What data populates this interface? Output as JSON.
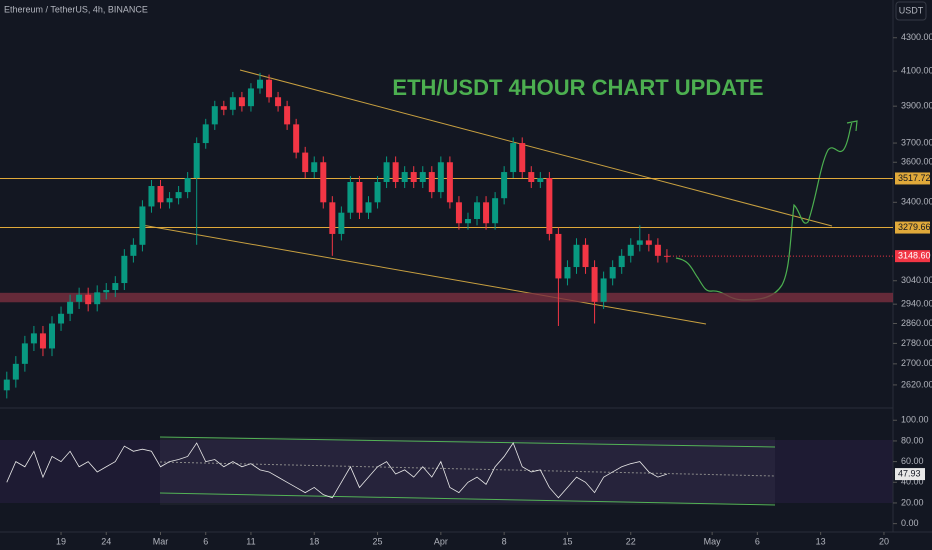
{
  "header": {
    "symbol": "Ethereum / TetherUS, 4h, BINANCE",
    "currency": "USDT"
  },
  "chart_data": [
    {
      "type": "candlestick",
      "title": "ETH/USDT 4HOUR CHART UPDATE",
      "x": [
        -6,
        -5,
        -4,
        -3,
        -2,
        -1,
        0,
        1,
        2,
        3,
        4,
        5,
        6,
        7,
        8,
        9,
        10,
        11,
        12,
        13,
        14,
        15,
        16,
        17,
        18,
        19,
        20,
        21,
        22,
        23,
        24,
        25,
        26,
        27,
        28,
        29,
        30,
        31,
        32,
        33,
        34,
        35,
        36,
        37,
        38,
        39,
        40,
        41,
        42,
        43,
        44,
        45,
        46,
        47,
        48,
        49,
        50,
        51,
        52,
        53,
        54,
        55,
        56,
        57,
        58,
        59,
        60,
        61,
        62,
        63,
        64,
        65,
        66,
        67
      ],
      "open": [
        2600,
        2640,
        2700,
        2780,
        2820,
        2760,
        2860,
        2900,
        2950,
        2980,
        2940,
        2990,
        3000,
        3030,
        3150,
        3200,
        3380,
        3480,
        3400,
        3420,
        3450,
        3520,
        3700,
        3800,
        3900,
        3880,
        3950,
        3900,
        4000,
        4050,
        3950,
        3900,
        3800,
        3650,
        3550,
        3600,
        3400,
        3250,
        3350,
        3500,
        3350,
        3400,
        3500,
        3600,
        3500,
        3550,
        3500,
        3550,
        3450,
        3600,
        3400,
        3300,
        3320,
        3400,
        3300,
        3420,
        3550,
        3700,
        3550,
        3500,
        3520,
        3250,
        3050,
        3100,
        3200,
        3100,
        2950,
        3050,
        3100,
        3150,
        3200,
        3220,
        3200,
        3150
      ],
      "high": [
        2670,
        2730,
        2810,
        2850,
        2850,
        2890,
        2930,
        2980,
        3010,
        3010,
        3020,
        3030,
        3060,
        3180,
        3230,
        3410,
        3510,
        3510,
        3450,
        3480,
        3550,
        3730,
        3830,
        3930,
        3930,
        3980,
        3980,
        4030,
        4090,
        4080,
        3980,
        3930,
        3830,
        3680,
        3630,
        3630,
        3430,
        3380,
        3530,
        3530,
        3430,
        3530,
        3630,
        3630,
        3580,
        3580,
        3580,
        3580,
        3630,
        3630,
        3430,
        3350,
        3430,
        3430,
        3450,
        3580,
        3730,
        3730,
        3580,
        3550,
        3550,
        3280,
        3130,
        3230,
        3230,
        3130,
        3080,
        3130,
        3180,
        3230,
        3290,
        3250,
        3230,
        3180
      ],
      "low": [
        2570,
        2610,
        2670,
        2750,
        2730,
        2730,
        2830,
        2870,
        2920,
        2910,
        2910,
        2960,
        2970,
        3000,
        3120,
        3170,
        3350,
        3370,
        3370,
        3390,
        3420,
        3200,
        3670,
        3770,
        3850,
        3850,
        3870,
        3870,
        3970,
        3920,
        3870,
        3770,
        3620,
        3520,
        3520,
        3370,
        3150,
        3220,
        3320,
        3320,
        3320,
        3370,
        3470,
        3470,
        3470,
        3470,
        3470,
        3420,
        3420,
        3370,
        3270,
        3270,
        3290,
        3270,
        3270,
        3390,
        3520,
        3520,
        3470,
        3470,
        3220,
        2850,
        3020,
        3070,
        3070,
        2860,
        2920,
        3020,
        3070,
        3120,
        3170,
        3170,
        3120,
        3120
      ],
      "close": [
        2640,
        2700,
        2780,
        2820,
        2760,
        2860,
        2900,
        2950,
        2980,
        2940,
        2990,
        3000,
        3030,
        3150,
        3200,
        3380,
        3480,
        3400,
        3420,
        3450,
        3520,
        3700,
        3800,
        3900,
        3880,
        3950,
        3900,
        4000,
        4050,
        3950,
        3900,
        3800,
        3650,
        3550,
        3600,
        3400,
        3250,
        3350,
        3500,
        3350,
        3400,
        3500,
        3600,
        3500,
        3550,
        3500,
        3550,
        3450,
        3600,
        3400,
        3300,
        3320,
        3400,
        3300,
        3420,
        3550,
        3700,
        3550,
        3500,
        3520,
        3250,
        3050,
        3100,
        3200,
        3100,
        2950,
        3050,
        3100,
        3150,
        3200,
        3220,
        3200,
        3150,
        3148.6
      ],
      "last_label": "3148.60",
      "up_color": "#089981",
      "down_color": "#f23645",
      "xlim": [
        -6.75,
        92
      ],
      "xticks": [
        {
          "value": 0,
          "label": "19"
        },
        {
          "value": 5,
          "label": "24"
        },
        {
          "value": 11,
          "label": "Mar"
        },
        {
          "value": 16,
          "label": "6"
        },
        {
          "value": 21,
          "label": "11"
        },
        {
          "value": 28,
          "label": "18"
        },
        {
          "value": 35,
          "label": "25"
        },
        {
          "value": 42,
          "label": "Apr"
        },
        {
          "value": 49,
          "label": "8"
        },
        {
          "value": 56,
          "label": "15"
        },
        {
          "value": 63,
          "label": "22"
        },
        {
          "value": 72,
          "label": "May"
        },
        {
          "value": 77,
          "label": "6"
        },
        {
          "value": 84,
          "label": "13"
        },
        {
          "value": 91,
          "label": "20"
        }
      ],
      "ylim": [
        2546,
        4538
      ],
      "log_scale": true,
      "yticks": [
        {
          "value": 4300,
          "label": "4300.00"
        },
        {
          "value": 4100,
          "label": "4100.00"
        },
        {
          "value": 3900,
          "label": "3900.00"
        },
        {
          "value": 3700,
          "label": "3700.00"
        },
        {
          "value": 3600,
          "label": "3600.00"
        },
        {
          "value": 3400,
          "label": "3400.00"
        },
        {
          "value": 3040,
          "label": "3040.00"
        },
        {
          "value": 2940,
          "label": "2940.00"
        },
        {
          "value": 2860,
          "label": "2860.00"
        },
        {
          "value": 2780,
          "label": "2780.00"
        },
        {
          "value": 2700,
          "label": "2700.00"
        },
        {
          "value": 2620,
          "label": "2620.00"
        }
      ],
      "levels": [
        {
          "value": 3517.72,
          "label": "3517.72"
        },
        {
          "value": 3279.66,
          "label": "3279.66"
        }
      ],
      "level_color": "#e0a93a",
      "zone": [
        2948,
        2988
      ],
      "zone_color": "#7a3040"
    },
    {
      "type": "line",
      "color": "#e8e8e8",
      "values": [
        40,
        60,
        55,
        70,
        45,
        65,
        60,
        70,
        55,
        60,
        50,
        55,
        60,
        75,
        70,
        72,
        70,
        55,
        60,
        62,
        65,
        78,
        60,
        62,
        55,
        60,
        55,
        58,
        52,
        50,
        45,
        40,
        35,
        30,
        35,
        28,
        25,
        40,
        55,
        35,
        45,
        55,
        60,
        48,
        52,
        45,
        55,
        45,
        60,
        35,
        30,
        40,
        45,
        38,
        55,
        65,
        78,
        55,
        50,
        52,
        35,
        25,
        35,
        45,
        40,
        30,
        45,
        50,
        55,
        58,
        60,
        50,
        45,
        47.93
      ],
      "last_label": "47.93",
      "ylim": [
        -11,
        108
      ],
      "yticks": [
        {
          "value": 100,
          "label": "100.00"
        },
        {
          "value": 80,
          "label": "80.00"
        },
        {
          "value": 60,
          "label": "60.00"
        },
        {
          "value": 40,
          "label": "40.00"
        },
        {
          "value": 20,
          "label": "20.00"
        },
        {
          "value": 0,
          "label": "0.00"
        }
      ]
    }
  ]
}
